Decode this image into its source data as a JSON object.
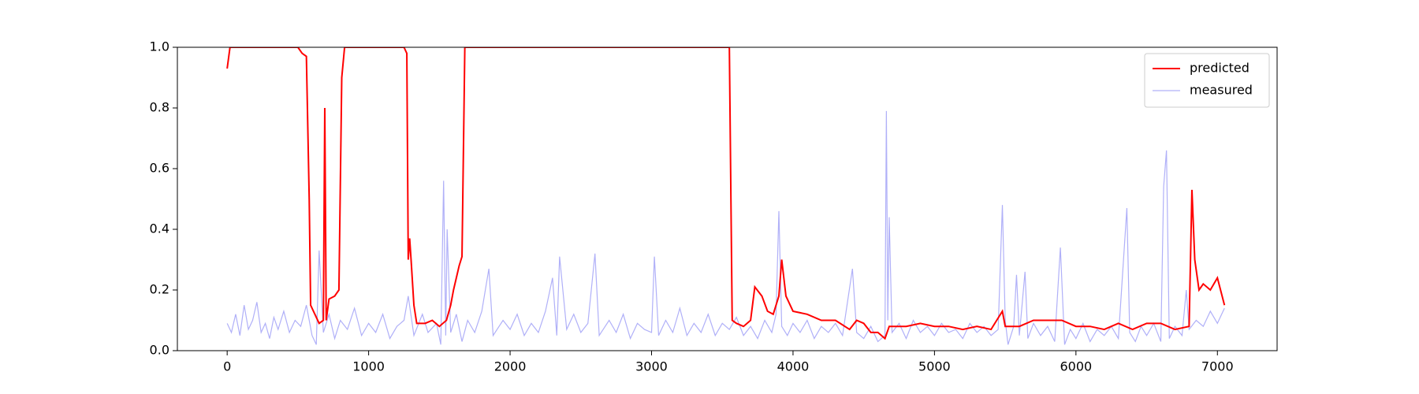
{
  "chart_data": {
    "type": "line",
    "xlim": [
      -352,
      7422
    ],
    "ylim": [
      0,
      1
    ],
    "xticks": [
      0,
      1000,
      2000,
      3000,
      4000,
      5000,
      6000,
      7000
    ],
    "yticks": [
      {
        "value": 0,
        "label": "0.0"
      },
      {
        "value": 0.2,
        "label": "0.2"
      },
      {
        "value": 0.4,
        "label": "0.4"
      },
      {
        "value": 0.6,
        "label": "0.6"
      },
      {
        "value": 0.8,
        "label": "0.8"
      },
      {
        "value": 1,
        "label": "1.0"
      }
    ],
    "grid": false,
    "legend": "upper right",
    "series": [
      {
        "name": "predicted",
        "color": "#ff0000",
        "x": [
          0,
          20,
          100,
          500,
          530,
          560,
          580,
          590,
          620,
          650,
          680,
          690,
          700,
          720,
          760,
          790,
          810,
          830,
          1250,
          1270,
          1280,
          1290,
          1300,
          1320,
          1340,
          1400,
          1450,
          1500,
          1550,
          1580,
          1600,
          1620,
          1640,
          1660,
          1680,
          3550,
          3570,
          3600,
          3650,
          3700,
          3730,
          3780,
          3820,
          3860,
          3900,
          3920,
          3950,
          4000,
          4100,
          4200,
          4300,
          4400,
          4450,
          4500,
          4550,
          4600,
          4650,
          4680,
          4800,
          4900,
          5000,
          5100,
          5200,
          5300,
          5400,
          5480,
          5500,
          5600,
          5700,
          5800,
          5900,
          6000,
          6100,
          6200,
          6300,
          6400,
          6500,
          6600,
          6700,
          6800,
          6820,
          6840,
          6870,
          6900,
          6950,
          7000,
          7050
        ],
        "values": [
          0.93,
          1.0,
          1.0,
          1.0,
          0.98,
          0.97,
          0.5,
          0.15,
          0.12,
          0.09,
          0.1,
          0.8,
          0.1,
          0.17,
          0.18,
          0.2,
          0.9,
          1.0,
          1.0,
          0.98,
          0.3,
          0.37,
          0.3,
          0.15,
          0.09,
          0.09,
          0.1,
          0.08,
          0.1,
          0.15,
          0.2,
          0.24,
          0.28,
          0.31,
          1.0,
          1.0,
          0.1,
          0.09,
          0.08,
          0.1,
          0.21,
          0.18,
          0.13,
          0.12,
          0.18,
          0.3,
          0.18,
          0.13,
          0.12,
          0.1,
          0.1,
          0.07,
          0.1,
          0.09,
          0.06,
          0.06,
          0.04,
          0.08,
          0.08,
          0.09,
          0.08,
          0.08,
          0.07,
          0.08,
          0.07,
          0.13,
          0.08,
          0.08,
          0.1,
          0.1,
          0.1,
          0.08,
          0.08,
          0.07,
          0.09,
          0.07,
          0.09,
          0.09,
          0.07,
          0.08,
          0.53,
          0.3,
          0.2,
          0.22,
          0.2,
          0.24,
          0.15
        ]
      },
      {
        "name": "measured",
        "color": "#b0b0f8",
        "x": [
          0,
          30,
          60,
          90,
          120,
          150,
          180,
          210,
          240,
          270,
          300,
          330,
          360,
          400,
          440,
          480,
          520,
          560,
          600,
          630,
          650,
          680,
          720,
          760,
          800,
          850,
          900,
          950,
          1000,
          1050,
          1100,
          1150,
          1200,
          1250,
          1280,
          1320,
          1380,
          1420,
          1480,
          1510,
          1530,
          1545,
          1555,
          1580,
          1620,
          1660,
          1700,
          1750,
          1800,
          1850,
          1880,
          1950,
          2000,
          2050,
          2100,
          2150,
          2200,
          2250,
          2300,
          2330,
          2350,
          2400,
          2450,
          2500,
          2550,
          2600,
          2630,
          2700,
          2750,
          2800,
          2850,
          2900,
          2950,
          3000,
          3020,
          3050,
          3100,
          3150,
          3200,
          3250,
          3300,
          3350,
          3400,
          3450,
          3500,
          3550,
          3600,
          3650,
          3700,
          3750,
          3800,
          3850,
          3880,
          3900,
          3920,
          3960,
          4000,
          4050,
          4100,
          4150,
          4200,
          4250,
          4300,
          4350,
          4420,
          4450,
          4500,
          4550,
          4600,
          4650,
          4660,
          4670,
          4680,
          4700,
          4750,
          4800,
          4850,
          4900,
          4950,
          5000,
          5050,
          5100,
          5150,
          5200,
          5250,
          5300,
          5350,
          5400,
          5450,
          5480,
          5500,
          5520,
          5560,
          5580,
          5600,
          5640,
          5660,
          5700,
          5750,
          5800,
          5850,
          5890,
          5920,
          5960,
          6000,
          6050,
          6100,
          6150,
          6200,
          6250,
          6300,
          6360,
          6380,
          6420,
          6460,
          6500,
          6550,
          6600,
          6620,
          6640,
          6660,
          6700,
          6750,
          6780,
          6800,
          6850,
          6900,
          6950,
          7000,
          7050
        ],
        "values": [
          0.09,
          0.06,
          0.12,
          0.05,
          0.15,
          0.07,
          0.1,
          0.16,
          0.06,
          0.09,
          0.04,
          0.11,
          0.07,
          0.13,
          0.06,
          0.1,
          0.08,
          0.15,
          0.05,
          0.02,
          0.33,
          0.06,
          0.12,
          0.04,
          0.1,
          0.07,
          0.14,
          0.05,
          0.09,
          0.06,
          0.12,
          0.04,
          0.08,
          0.1,
          0.18,
          0.05,
          0.12,
          0.06,
          0.09,
          0.02,
          0.56,
          0.05,
          0.4,
          0.06,
          0.12,
          0.03,
          0.1,
          0.06,
          0.13,
          0.27,
          0.05,
          0.1,
          0.07,
          0.12,
          0.05,
          0.09,
          0.06,
          0.13,
          0.24,
          0.05,
          0.31,
          0.07,
          0.12,
          0.06,
          0.09,
          0.32,
          0.05,
          0.1,
          0.06,
          0.12,
          0.04,
          0.09,
          0.07,
          0.06,
          0.31,
          0.05,
          0.1,
          0.06,
          0.14,
          0.05,
          0.09,
          0.06,
          0.12,
          0.05,
          0.09,
          0.07,
          0.11,
          0.05,
          0.08,
          0.04,
          0.1,
          0.06,
          0.12,
          0.46,
          0.08,
          0.05,
          0.09,
          0.06,
          0.1,
          0.04,
          0.08,
          0.06,
          0.09,
          0.05,
          0.27,
          0.06,
          0.04,
          0.08,
          0.03,
          0.05,
          0.79,
          0.1,
          0.44,
          0.06,
          0.09,
          0.04,
          0.1,
          0.06,
          0.08,
          0.05,
          0.09,
          0.06,
          0.07,
          0.04,
          0.09,
          0.06,
          0.08,
          0.05,
          0.07,
          0.48,
          0.1,
          0.02,
          0.08,
          0.25,
          0.05,
          0.26,
          0.04,
          0.09,
          0.05,
          0.08,
          0.03,
          0.34,
          0.02,
          0.07,
          0.04,
          0.09,
          0.03,
          0.07,
          0.05,
          0.08,
          0.04,
          0.47,
          0.06,
          0.03,
          0.08,
          0.05,
          0.09,
          0.03,
          0.54,
          0.66,
          0.04,
          0.08,
          0.05,
          0.2,
          0.07,
          0.1,
          0.08,
          0.13,
          0.09,
          0.14
        ]
      }
    ]
  }
}
